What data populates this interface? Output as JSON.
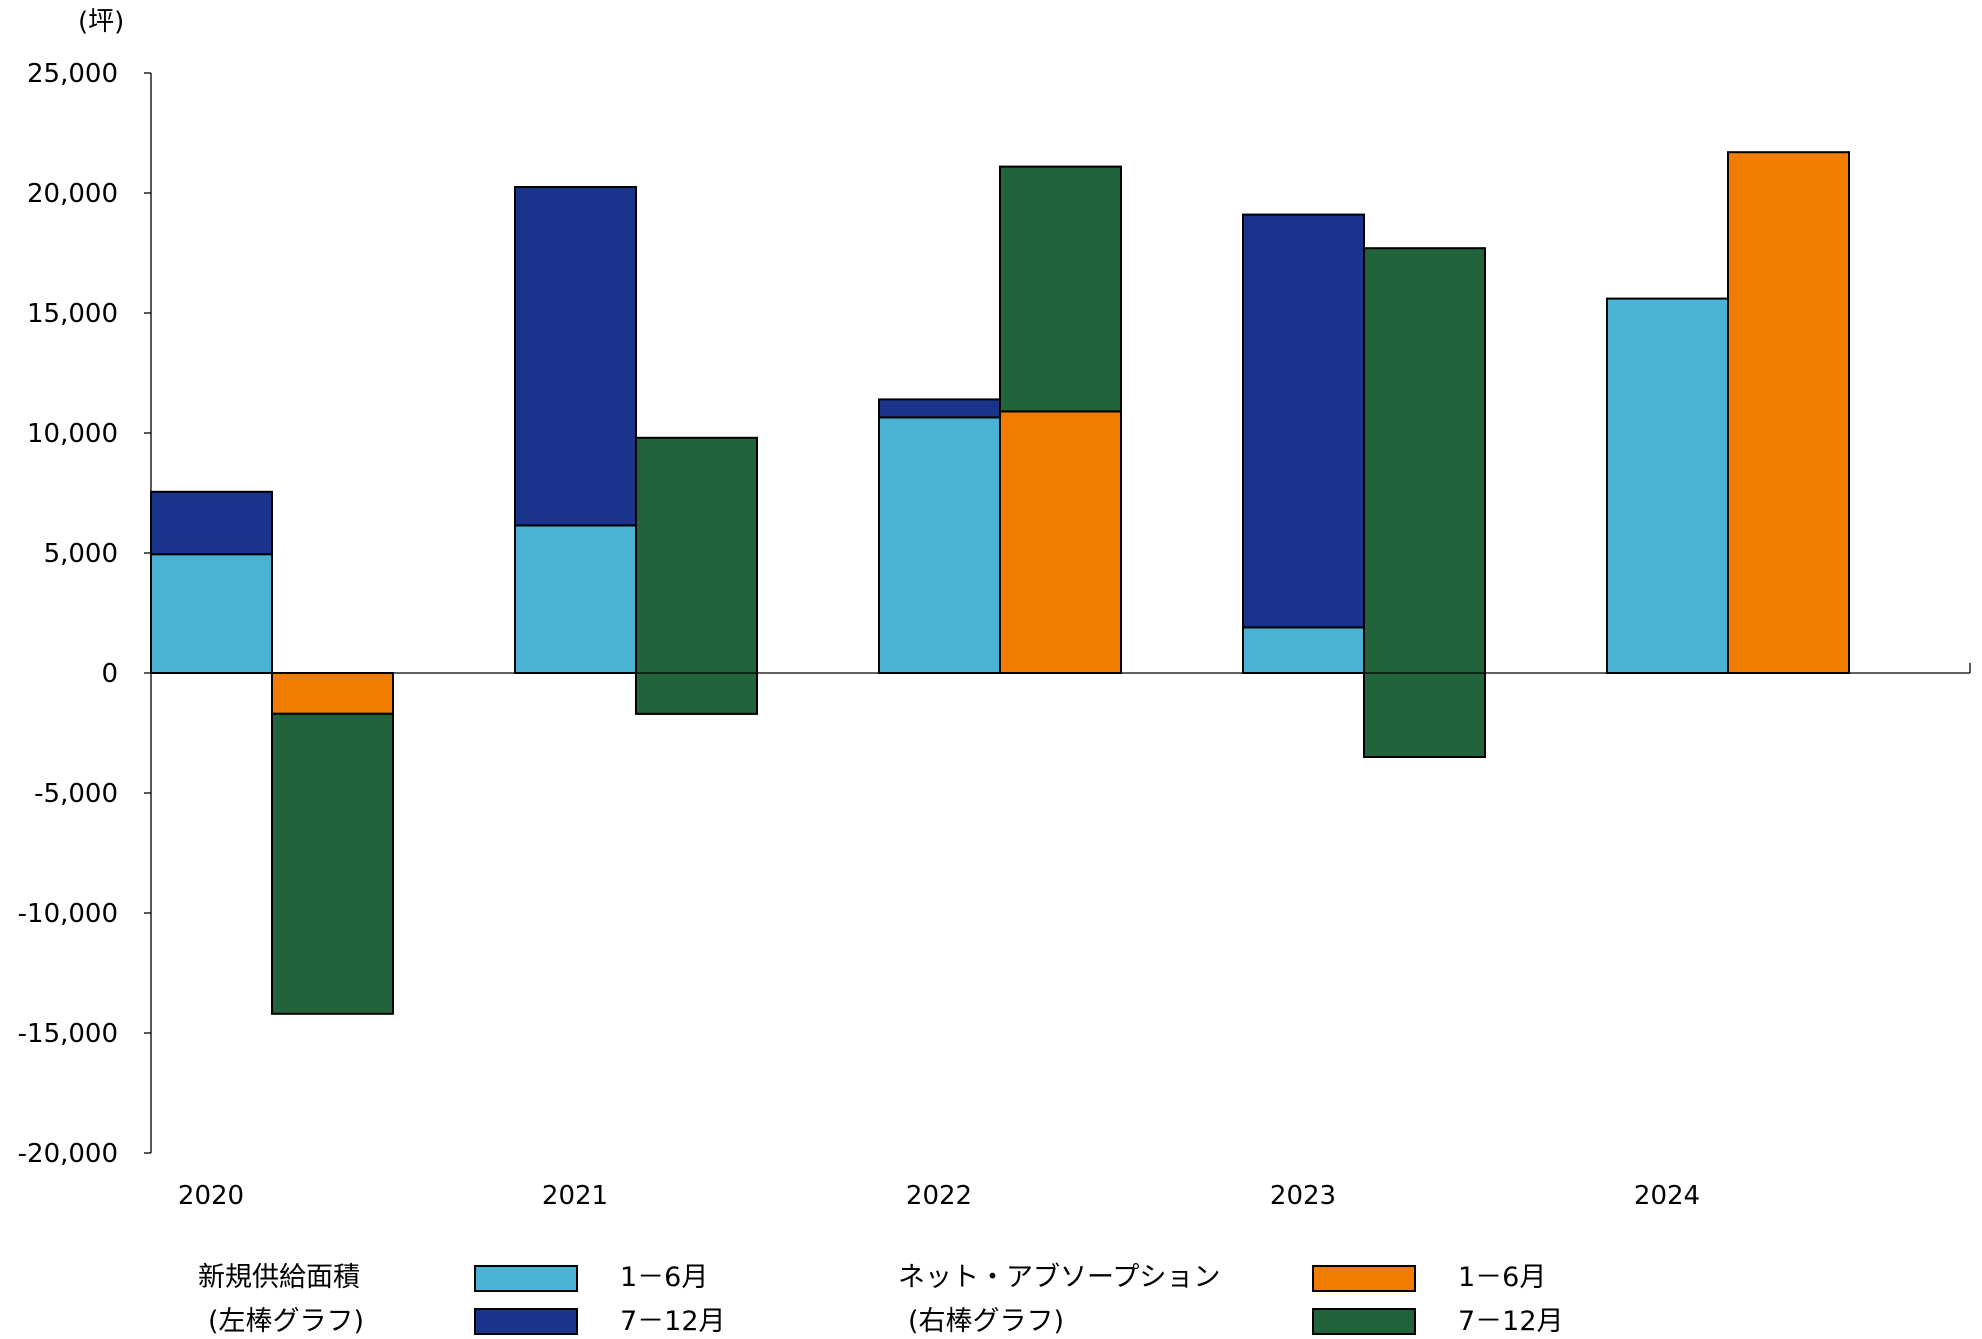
{
  "chart_data": {
    "type": "bar",
    "unit_label": "(坪)",
    "categories": [
      "2020",
      "2021",
      "2022",
      "2023",
      "2024"
    ],
    "ylim": [
      -20000,
      25000
    ],
    "y_ticks": [
      25000,
      20000,
      15000,
      10000,
      5000,
      0,
      -5000,
      -10000,
      -15000,
      -20000
    ],
    "y_tick_labels": [
      "25,000",
      "20,000",
      "15,000",
      "10,000",
      "5,000",
      "0",
      "-5,000",
      "-10,000",
      "-15,000",
      "-20,000"
    ],
    "groups": [
      {
        "name": "新規供給面積",
        "note": "(左棒グラフ)",
        "series": [
          {
            "name": "1－6月",
            "color": "#4ab3d4",
            "values": [
              4950,
              6150,
              10650,
              1900,
              15600
            ]
          },
          {
            "name": "7－12月",
            "color": "#1a348c",
            "values": [
              2600,
              14100,
              750,
              17200,
              0
            ]
          }
        ]
      },
      {
        "name": "ネット・アブソープション",
        "note": "(右棒グラフ)",
        "series": [
          {
            "name": "1－6月",
            "color": "#f07d00",
            "values": [
              -1700,
              -1700,
              10900,
              -3500,
              21700
            ]
          },
          {
            "name": "7－12月",
            "color": "#21633a",
            "values": [
              -12500,
              11500,
              10200,
              21200,
              0
            ]
          }
        ]
      }
    ],
    "grid": false,
    "legend_position": "bottom"
  }
}
